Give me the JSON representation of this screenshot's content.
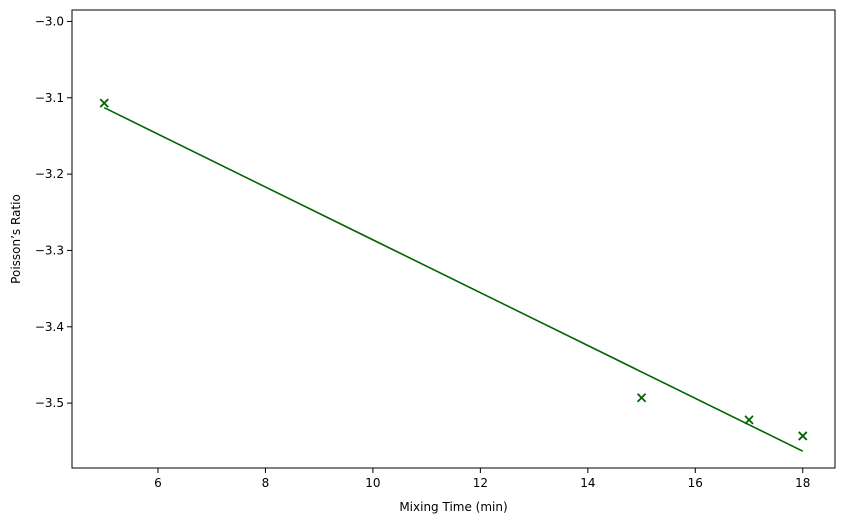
{
  "chart_data": {
    "type": "scatter",
    "title": "",
    "xlabel": "Mixing Time (min)",
    "ylabel": "Poisson’s Ratio",
    "xlim": [
      4.4,
      18.6
    ],
    "ylim": [
      -3.585,
      -2.985
    ],
    "xticks": [
      6,
      8,
      10,
      12,
      14,
      16,
      18
    ],
    "yticks": [
      -3.0,
      -3.1,
      -3.2,
      -3.3,
      -3.4,
      -3.5
    ],
    "xtick_labels": [
      "6",
      "8",
      "10",
      "12",
      "14",
      "16",
      "18"
    ],
    "ytick_labels": [
      "−3.0",
      "−3.1",
      "−3.2",
      "−3.3",
      "−3.4",
      "−3.5"
    ],
    "grid": false,
    "color": "#006400",
    "series": [
      {
        "kind": "scatter",
        "marker": "x",
        "x": [
          5,
          15,
          17,
          18
        ],
        "y": [
          -3.107,
          -3.493,
          -3.522,
          -3.543
        ]
      },
      {
        "kind": "line",
        "x": [
          5,
          18
        ],
        "y": [
          -3.113,
          -3.563
        ]
      }
    ]
  }
}
